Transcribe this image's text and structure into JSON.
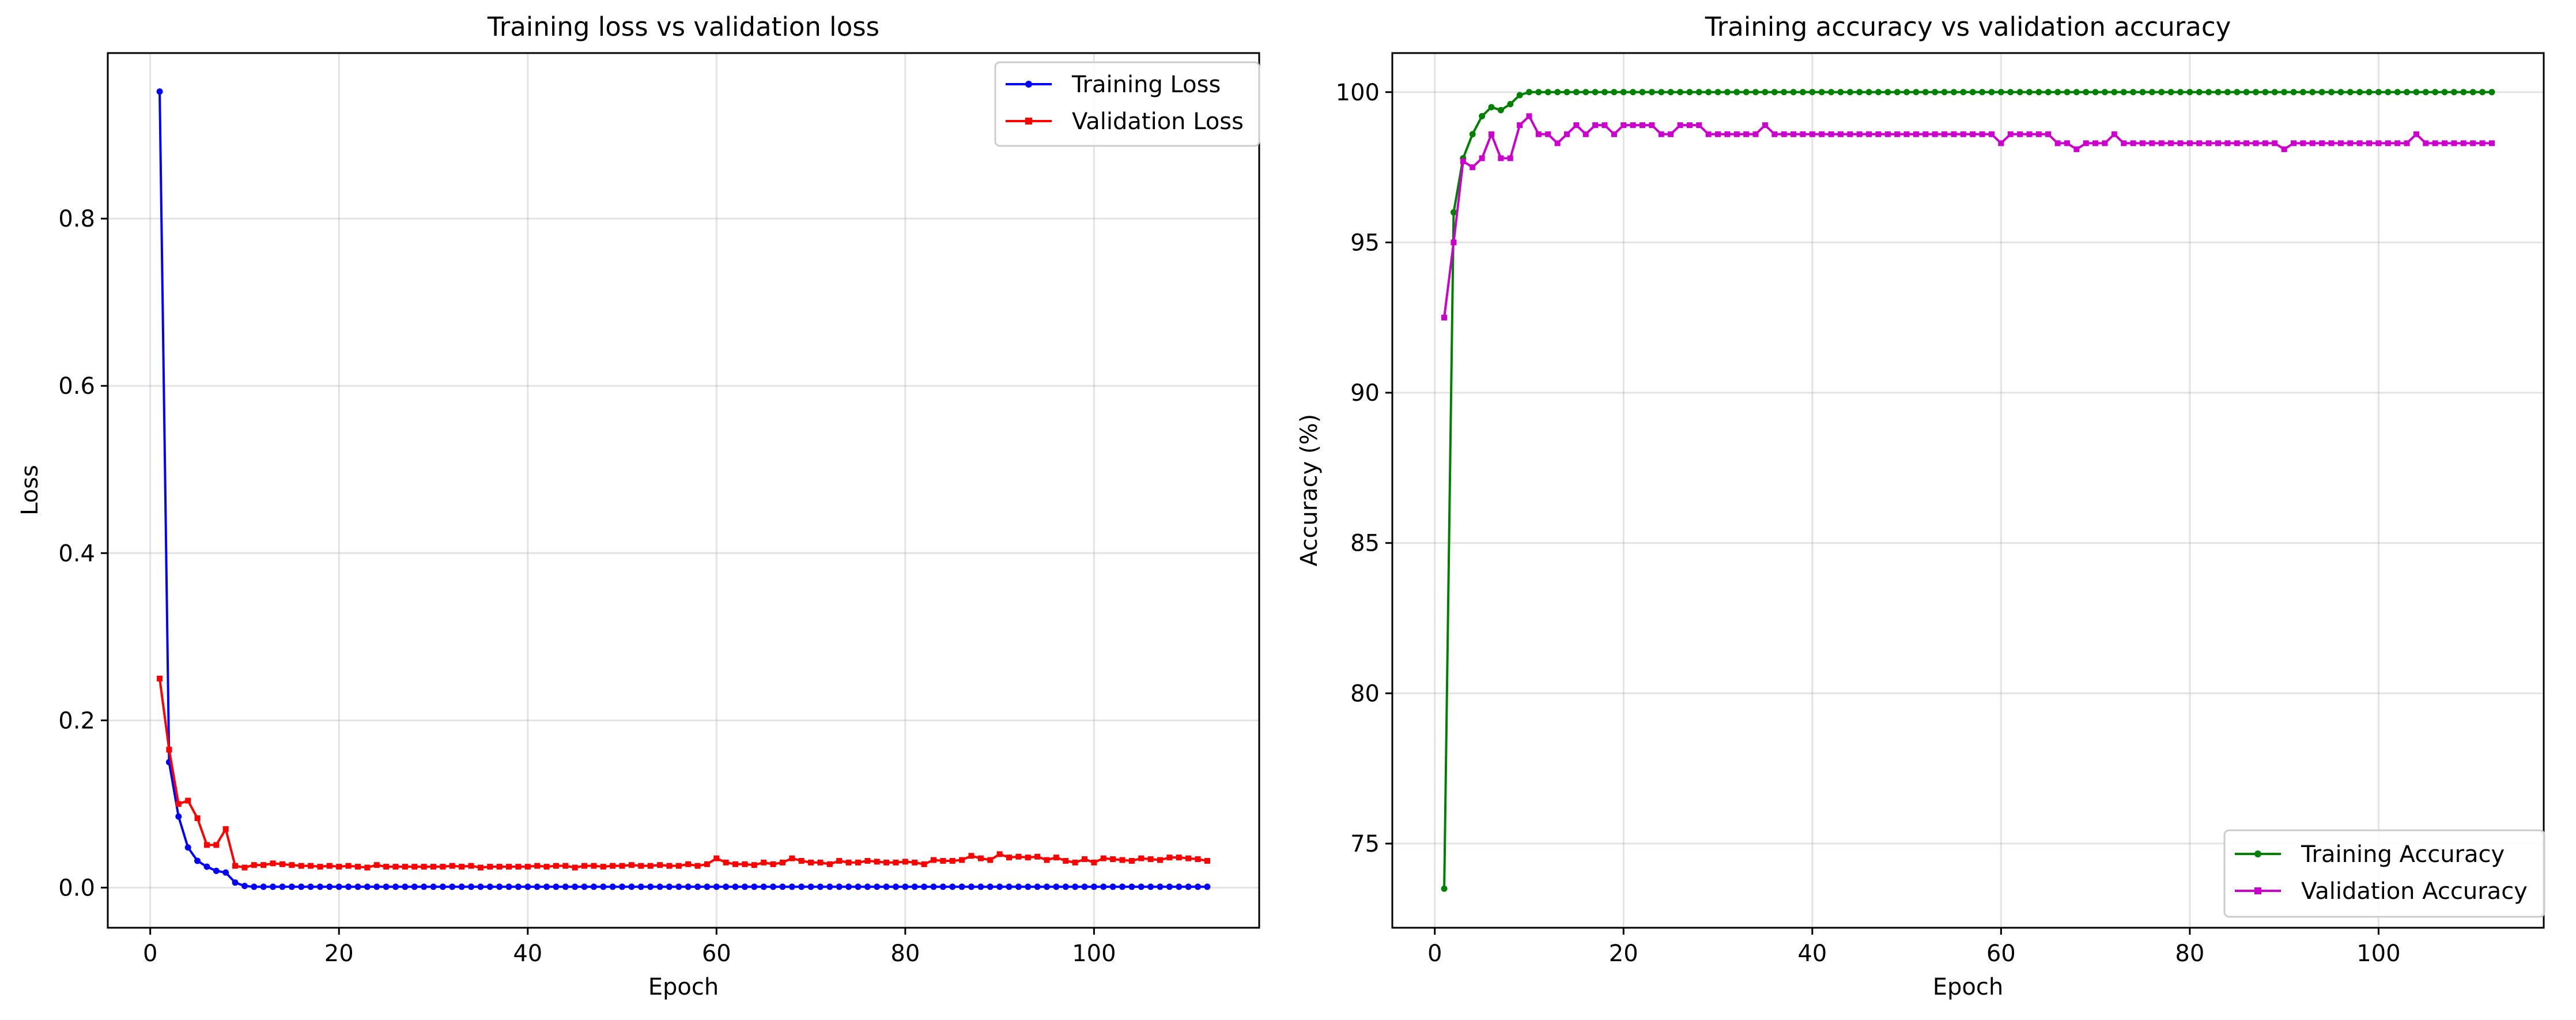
{
  "chart_data": [
    {
      "type": "line",
      "title": "Training loss vs validation loss",
      "xlabel": "Epoch",
      "ylabel": "Loss",
      "xlim": [
        -4.5,
        117.5
      ],
      "ylim": [
        -0.048,
        0.998
      ],
      "xticks": [
        0,
        20,
        40,
        60,
        80,
        100
      ],
      "xtick_labels": [
        "0",
        "20",
        "40",
        "60",
        "80",
        "100"
      ],
      "yticks": [
        0.0,
        0.2,
        0.4,
        0.6,
        0.8
      ],
      "ytick_labels": [
        "0.0",
        "0.2",
        "0.4",
        "0.6",
        "0.8"
      ],
      "grid": true,
      "legend_position": "top-right",
      "x": [
        1,
        2,
        3,
        4,
        5,
        6,
        7,
        8,
        9,
        10,
        11,
        12,
        13,
        14,
        15,
        16,
        17,
        18,
        19,
        20,
        21,
        22,
        23,
        24,
        25,
        26,
        27,
        28,
        29,
        30,
        31,
        32,
        33,
        34,
        35,
        36,
        37,
        38,
        39,
        40,
        41,
        42,
        43,
        44,
        45,
        46,
        47,
        48,
        49,
        50,
        51,
        52,
        53,
        54,
        55,
        56,
        57,
        58,
        59,
        60,
        61,
        62,
        63,
        64,
        65,
        66,
        67,
        68,
        69,
        70,
        71,
        72,
        73,
        74,
        75,
        76,
        77,
        78,
        79,
        80,
        81,
        82,
        83,
        84,
        85,
        86,
        87,
        88,
        89,
        90,
        91,
        92,
        93,
        94,
        95,
        96,
        97,
        98,
        99,
        100,
        101,
        102,
        103,
        104,
        105,
        106,
        107,
        108,
        109,
        110,
        111,
        112
      ],
      "series": [
        {
          "name": "Training Loss",
          "color": "#0000ff",
          "marker": "circle",
          "values": [
            0.952,
            0.15,
            0.085,
            0.048,
            0.032,
            0.025,
            0.02,
            0.018,
            0.006,
            0.002,
            0.001,
            0.001,
            0.001,
            0.001,
            0.001,
            0.001,
            0.001,
            0.001,
            0.001,
            0.001,
            0.001,
            0.001,
            0.001,
            0.001,
            0.001,
            0.001,
            0.001,
            0.001,
            0.001,
            0.001,
            0.001,
            0.001,
            0.001,
            0.001,
            0.001,
            0.001,
            0.001,
            0.001,
            0.001,
            0.001,
            0.001,
            0.001,
            0.001,
            0.001,
            0.001,
            0.001,
            0.001,
            0.001,
            0.001,
            0.001,
            0.001,
            0.001,
            0.001,
            0.001,
            0.001,
            0.001,
            0.001,
            0.001,
            0.001,
            0.001,
            0.001,
            0.001,
            0.001,
            0.001,
            0.001,
            0.001,
            0.001,
            0.001,
            0.001,
            0.001,
            0.001,
            0.001,
            0.001,
            0.001,
            0.001,
            0.001,
            0.001,
            0.001,
            0.001,
            0.001,
            0.001,
            0.001,
            0.001,
            0.001,
            0.001,
            0.001,
            0.001,
            0.001,
            0.001,
            0.001,
            0.001,
            0.001,
            0.001,
            0.001,
            0.001,
            0.001,
            0.001,
            0.001,
            0.001,
            0.001,
            0.001,
            0.001,
            0.001,
            0.001,
            0.001,
            0.001,
            0.001,
            0.001,
            0.001,
            0.001,
            0.001,
            0.001
          ]
        },
        {
          "name": "Validation Loss",
          "color": "#ff0000",
          "marker": "square",
          "values": [
            0.25,
            0.165,
            0.1,
            0.104,
            0.083,
            0.051,
            0.051,
            0.07,
            0.026,
            0.024,
            0.027,
            0.027,
            0.029,
            0.028,
            0.027,
            0.026,
            0.026,
            0.025,
            0.026,
            0.025,
            0.026,
            0.025,
            0.024,
            0.027,
            0.025,
            0.025,
            0.025,
            0.025,
            0.025,
            0.025,
            0.025,
            0.026,
            0.025,
            0.026,
            0.024,
            0.025,
            0.025,
            0.025,
            0.025,
            0.025,
            0.026,
            0.025,
            0.026,
            0.026,
            0.024,
            0.026,
            0.026,
            0.025,
            0.026,
            0.026,
            0.027,
            0.026,
            0.026,
            0.027,
            0.026,
            0.026,
            0.028,
            0.026,
            0.028,
            0.035,
            0.03,
            0.028,
            0.028,
            0.027,
            0.03,
            0.028,
            0.03,
            0.035,
            0.032,
            0.03,
            0.03,
            0.028,
            0.032,
            0.03,
            0.03,
            0.032,
            0.031,
            0.03,
            0.03,
            0.031,
            0.03,
            0.028,
            0.033,
            0.032,
            0.032,
            0.033,
            0.038,
            0.035,
            0.033,
            0.04,
            0.036,
            0.037,
            0.036,
            0.037,
            0.033,
            0.036,
            0.032,
            0.03,
            0.034,
            0.03,
            0.035,
            0.034,
            0.033,
            0.032,
            0.035,
            0.034,
            0.033,
            0.036,
            0.036,
            0.035,
            0.034,
            0.032
          ]
        }
      ]
    },
    {
      "type": "line",
      "title": "Training accuracy vs validation accuracy",
      "xlabel": "Epoch",
      "ylabel": "Accuracy (%)",
      "xlim": [
        -4.5,
        117.5
      ],
      "ylim": [
        72.2,
        101.3
      ],
      "xticks": [
        0,
        20,
        40,
        60,
        80,
        100
      ],
      "xtick_labels": [
        "0",
        "20",
        "40",
        "60",
        "80",
        "100"
      ],
      "yticks": [
        75,
        80,
        85,
        90,
        95,
        100
      ],
      "ytick_labels": [
        "75",
        "80",
        "85",
        "90",
        "95",
        "100"
      ],
      "grid": true,
      "legend_position": "bottom-right",
      "x": [
        1,
        2,
        3,
        4,
        5,
        6,
        7,
        8,
        9,
        10,
        11,
        12,
        13,
        14,
        15,
        16,
        17,
        18,
        19,
        20,
        21,
        22,
        23,
        24,
        25,
        26,
        27,
        28,
        29,
        30,
        31,
        32,
        33,
        34,
        35,
        36,
        37,
        38,
        39,
        40,
        41,
        42,
        43,
        44,
        45,
        46,
        47,
        48,
        49,
        50,
        51,
        52,
        53,
        54,
        55,
        56,
        57,
        58,
        59,
        60,
        61,
        62,
        63,
        64,
        65,
        66,
        67,
        68,
        69,
        70,
        71,
        72,
        73,
        74,
        75,
        76,
        77,
        78,
        79,
        80,
        81,
        82,
        83,
        84,
        85,
        86,
        87,
        88,
        89,
        90,
        91,
        92,
        93,
        94,
        95,
        96,
        97,
        98,
        99,
        100,
        101,
        102,
        103,
        104,
        105,
        106,
        107,
        108,
        109,
        110,
        111,
        112
      ],
      "series": [
        {
          "name": "Training Accuracy",
          "color": "#008000",
          "marker": "circle",
          "values": [
            73.5,
            96.0,
            97.8,
            98.6,
            99.2,
            99.5,
            99.4,
            99.6,
            99.9,
            100,
            100,
            100,
            100,
            100,
            100,
            100,
            100,
            100,
            100,
            100,
            100,
            100,
            100,
            100,
            100,
            100,
            100,
            100,
            100,
            100,
            100,
            100,
            100,
            100,
            100,
            100,
            100,
            100,
            100,
            100,
            100,
            100,
            100,
            100,
            100,
            100,
            100,
            100,
            100,
            100,
            100,
            100,
            100,
            100,
            100,
            100,
            100,
            100,
            100,
            100,
            100,
            100,
            100,
            100,
            100,
            100,
            100,
            100,
            100,
            100,
            100,
            100,
            100,
            100,
            100,
            100,
            100,
            100,
            100,
            100,
            100,
            100,
            100,
            100,
            100,
            100,
            100,
            100,
            100,
            100,
            100,
            100,
            100,
            100,
            100,
            100,
            100,
            100,
            100,
            100,
            100,
            100,
            100,
            100,
            100,
            100,
            100,
            100,
            100,
            100,
            100,
            100
          ]
        },
        {
          "name": "Validation Accuracy",
          "color": "#cc00cc",
          "marker": "square",
          "values": [
            92.5,
            95.0,
            97.7,
            97.5,
            97.8,
            98.6,
            97.8,
            97.8,
            98.9,
            99.2,
            98.6,
            98.6,
            98.3,
            98.6,
            98.9,
            98.6,
            98.9,
            98.9,
            98.6,
            98.9,
            98.9,
            98.9,
            98.9,
            98.6,
            98.6,
            98.9,
            98.9,
            98.9,
            98.6,
            98.6,
            98.6,
            98.6,
            98.6,
            98.6,
            98.9,
            98.6,
            98.6,
            98.6,
            98.6,
            98.6,
            98.6,
            98.6,
            98.6,
            98.6,
            98.6,
            98.6,
            98.6,
            98.6,
            98.6,
            98.6,
            98.6,
            98.6,
            98.6,
            98.6,
            98.6,
            98.6,
            98.6,
            98.6,
            98.6,
            98.3,
            98.6,
            98.6,
            98.6,
            98.6,
            98.6,
            98.3,
            98.3,
            98.1,
            98.3,
            98.3,
            98.3,
            98.6,
            98.3,
            98.3,
            98.3,
            98.3,
            98.3,
            98.3,
            98.3,
            98.3,
            98.3,
            98.3,
            98.3,
            98.3,
            98.3,
            98.3,
            98.3,
            98.3,
            98.3,
            98.1,
            98.3,
            98.3,
            98.3,
            98.3,
            98.3,
            98.3,
            98.3,
            98.3,
            98.3,
            98.3,
            98.3,
            98.3,
            98.3,
            98.6,
            98.3,
            98.3,
            98.3,
            98.3,
            98.3,
            98.3,
            98.3,
            98.3
          ]
        }
      ]
    }
  ]
}
